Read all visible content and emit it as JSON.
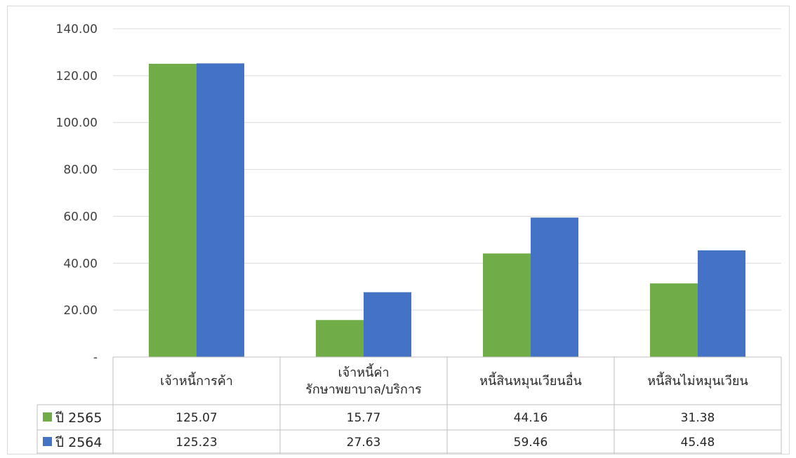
{
  "chart_data": {
    "type": "bar",
    "categories": [
      [
        "เจ้าหนี้การค้า"
      ],
      [
        "เจ้าหนี้ค่า",
        "รักษาพยาบาล/บริการ"
      ],
      [
        "หนี้สินหมุนเวียนอื่น"
      ],
      [
        "หนี้สินไม่หมุนเวียน"
      ]
    ],
    "series": [
      {
        "name": "ปี 2565",
        "color": "#70ad47",
        "values": [
          125.07,
          15.77,
          44.16,
          31.38
        ],
        "labels": [
          "125.07",
          "15.77",
          "44.16",
          "31.38"
        ]
      },
      {
        "name": "ปี 2564",
        "color": "#4472c4",
        "values": [
          125.23,
          27.63,
          59.46,
          45.48
        ],
        "labels": [
          "125.23",
          "27.63",
          "59.46",
          "45.48"
        ]
      }
    ],
    "ylim": [
      0,
      140
    ],
    "yticks": [
      {
        "value": 0,
        "label": "-"
      },
      {
        "value": 20,
        "label": "20.00"
      },
      {
        "value": 40,
        "label": "40.00"
      },
      {
        "value": 60,
        "label": "60.00"
      },
      {
        "value": 80,
        "label": "80.00"
      },
      {
        "value": 100,
        "label": "100.00"
      },
      {
        "value": 120,
        "label": "120.00"
      },
      {
        "value": 140,
        "label": "140.00"
      }
    ],
    "grid": true,
    "legend": "data-table"
  }
}
